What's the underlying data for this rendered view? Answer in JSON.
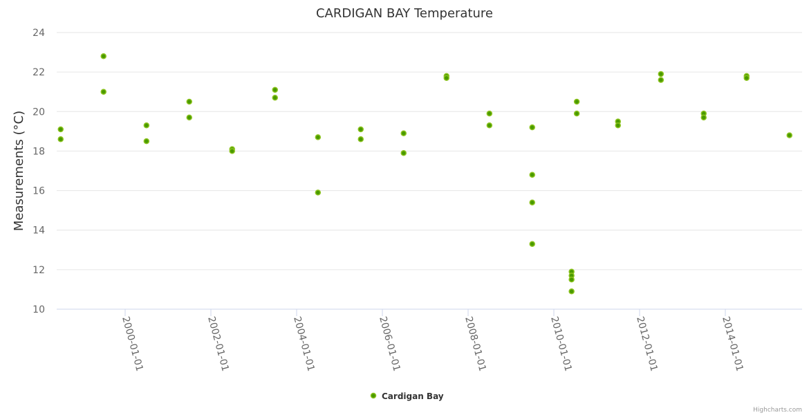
{
  "chart_data": {
    "type": "scatter",
    "title": "CARDIGAN BAY Temperature",
    "xlabel": "",
    "ylabel": "Measurements (°C)",
    "ylim": [
      10,
      24
    ],
    "yticks": [
      10,
      12,
      14,
      16,
      18,
      20,
      22,
      24
    ],
    "xticks": [
      "2000-01-01",
      "2002-01-01",
      "2004-01-01",
      "2006-01-01",
      "2008-01-01",
      "2010-01-01",
      "2012-01-01",
      "2014-01-01"
    ],
    "grid": true,
    "legend_position": "bottom-center",
    "series": [
      {
        "name": "Cardigan Bay",
        "color": "#4a9a00",
        "border": "#8cc31f",
        "points": [
          [
            "1998-07-01",
            19.1
          ],
          [
            "1998-07-01",
            18.6
          ],
          [
            "1999-07-01",
            22.8
          ],
          [
            "1999-07-01",
            21.0
          ],
          [
            "2000-07-01",
            19.3
          ],
          [
            "2000-07-01",
            18.5
          ],
          [
            "2001-07-01",
            20.5
          ],
          [
            "2001-07-01",
            19.7
          ],
          [
            "2002-07-01",
            18.1
          ],
          [
            "2002-07-01",
            18.0
          ],
          [
            "2003-07-01",
            21.1
          ],
          [
            "2003-07-01",
            20.7
          ],
          [
            "2004-07-01",
            18.7
          ],
          [
            "2004-07-01",
            15.9
          ],
          [
            "2005-07-01",
            19.1
          ],
          [
            "2005-07-01",
            18.6
          ],
          [
            "2006-07-01",
            18.9
          ],
          [
            "2006-07-01",
            17.9
          ],
          [
            "2007-07-01",
            21.8
          ],
          [
            "2007-07-01",
            21.7
          ],
          [
            "2008-07-01",
            19.9
          ],
          [
            "2008-07-01",
            19.3
          ],
          [
            "2009-07-01",
            19.2
          ],
          [
            "2009-07-01",
            16.8
          ],
          [
            "2009-07-01",
            15.4
          ],
          [
            "2009-07-01",
            13.3
          ],
          [
            "2010-06-01",
            11.9
          ],
          [
            "2010-06-01",
            11.7
          ],
          [
            "2010-06-01",
            11.5
          ],
          [
            "2010-06-01",
            10.9
          ],
          [
            "2010-07-15",
            20.5
          ],
          [
            "2010-07-15",
            19.9
          ],
          [
            "2011-07-01",
            19.5
          ],
          [
            "2011-07-01",
            19.3
          ],
          [
            "2012-07-01",
            21.9
          ],
          [
            "2012-07-01",
            21.6
          ],
          [
            "2013-07-01",
            19.9
          ],
          [
            "2013-07-01",
            19.7
          ],
          [
            "2014-07-01",
            21.8
          ],
          [
            "2014-07-01",
            21.7
          ],
          [
            "2015-07-01",
            18.8
          ]
        ]
      }
    ]
  },
  "credits": "Highcharts.com"
}
